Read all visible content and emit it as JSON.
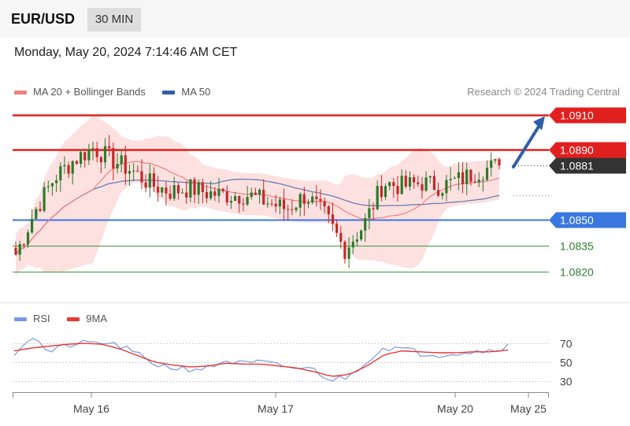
{
  "header": {
    "symbol": "EUR/USD",
    "timeframe": "30 MIN",
    "timestamp": "Monday, May 20, 2024 7:14:46 AM CET"
  },
  "legend": {
    "ma20_label": "MA 20 + Bollinger Bands",
    "ma50_label": "MA 50",
    "copyright": "Research © 2024 Trading Central"
  },
  "rsi_legend": {
    "rsi_label": "RSI",
    "ma_label": "9MA"
  },
  "colors": {
    "up": "#2b7a2b",
    "down": "#c62828",
    "resistance": "#e0201f",
    "current": "#333333",
    "pivot": "#3a78e0",
    "support": "#3a9a3a",
    "band_fill": "#fde0e0",
    "ma20": "#f08080",
    "ma50": "#6a7fb0",
    "arrow": "#2f5fa8",
    "rsi": "#7a98e6",
    "rsi_ma": "#e53935"
  },
  "chart_data": [
    {
      "type": "candlestick",
      "title": "EUR/USD 30 MIN",
      "ylim": [
        1.0815,
        1.0915
      ],
      "x_ticks": [
        "May 16",
        "May 17",
        "May 20",
        "May 25"
      ],
      "levels": [
        {
          "value": 1.091,
          "label": "1.0910",
          "kind": "resistance"
        },
        {
          "value": 1.089,
          "label": "1.0890",
          "kind": "resistance"
        },
        {
          "value": 1.0881,
          "label": "1.0881",
          "kind": "current"
        },
        {
          "value": 1.085,
          "label": "1.0850",
          "kind": "pivot"
        },
        {
          "value": 1.0835,
          "label": "1.0835",
          "kind": "support"
        },
        {
          "value": 1.082,
          "label": "1.0820",
          "kind": "support"
        }
      ],
      "forecast_arrow": {
        "from": 1.0881,
        "to": 1.091
      },
      "series": [
        {
          "name": "MA 20",
          "type": "line"
        },
        {
          "name": "MA 50",
          "type": "line"
        }
      ],
      "close_anchors": [
        1.083,
        1.0855,
        1.0874,
        1.0884,
        1.0891,
        1.0884,
        1.0878,
        1.087,
        1.0866,
        1.0868,
        1.0865,
        1.0864,
        1.0864,
        1.086,
        1.0856,
        1.0864,
        1.0852,
        1.0833,
        1.0847,
        1.0871,
        1.0869,
        1.0871,
        1.0869,
        1.0873,
        1.0878,
        1.0881
      ]
    },
    {
      "type": "line",
      "title": "RSI",
      "ylim": [
        25,
        80
      ],
      "y_ticks": [
        30,
        50,
        70
      ],
      "series": [
        {
          "name": "RSI",
          "values": [
            60,
            78,
            60,
            68,
            70,
            71,
            67,
            58,
            48,
            44,
            43,
            44,
            52,
            48,
            50,
            46,
            44,
            42,
            31,
            35,
            52,
            66,
            64,
            60,
            58,
            60,
            61,
            63,
            67
          ]
        },
        {
          "name": "9MA",
          "values": [
            62,
            65,
            67,
            69,
            70,
            69,
            64,
            57,
            50,
            47,
            45,
            46,
            49,
            48,
            48,
            46,
            44,
            40,
            35,
            37,
            46,
            58,
            62,
            61,
            60,
            60,
            61,
            61,
            63
          ]
        }
      ]
    }
  ]
}
